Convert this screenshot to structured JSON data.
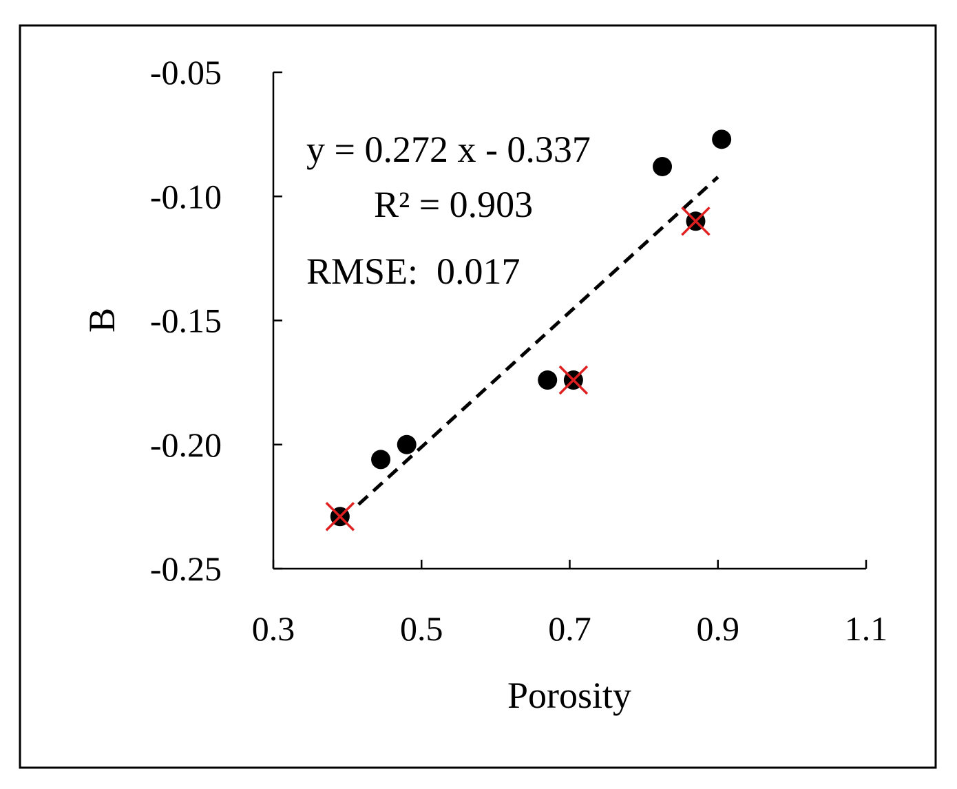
{
  "chart_data": {
    "type": "scatter",
    "xlabel": "Porosity",
    "ylabel": "B",
    "xlim": [
      0.3,
      1.1
    ],
    "ylim": [
      -0.25,
      -0.05
    ],
    "x_ticks": [
      0.3,
      0.5,
      0.7,
      0.9,
      1.1
    ],
    "x_tick_labels": [
      "0.3",
      "0.5",
      "0.7",
      "0.9",
      "1.1"
    ],
    "y_ticks": [
      -0.05,
      -0.1,
      -0.15,
      -0.2,
      -0.25
    ],
    "y_tick_labels": [
      "-0.05",
      "-0.10",
      "-0.15",
      "-0.20",
      "-0.25"
    ],
    "grid": false,
    "series": [
      {
        "name": "data",
        "marker": "circle",
        "color": "#000000",
        "x": [
          0.39,
          0.445,
          0.48,
          0.67,
          0.705,
          0.825,
          0.87,
          0.905
        ],
        "y": [
          -0.229,
          -0.206,
          -0.2,
          -0.174,
          -0.174,
          -0.088,
          -0.11,
          -0.077
        ]
      },
      {
        "name": "highlighted",
        "marker": "cross",
        "color": "#e02020",
        "x": [
          0.39,
          0.705,
          0.87
        ],
        "y": [
          -0.229,
          -0.174,
          -0.11
        ]
      }
    ],
    "fit": {
      "slope": 0.272,
      "intercept": -0.337,
      "x_range": [
        0.415,
        0.9
      ],
      "style": "dashed",
      "color": "#000000"
    },
    "annotations": {
      "equation": "y = 0.272 x - 0.337",
      "r2": "R² = 0.903",
      "rmse": "RMSE:  0.017"
    }
  }
}
